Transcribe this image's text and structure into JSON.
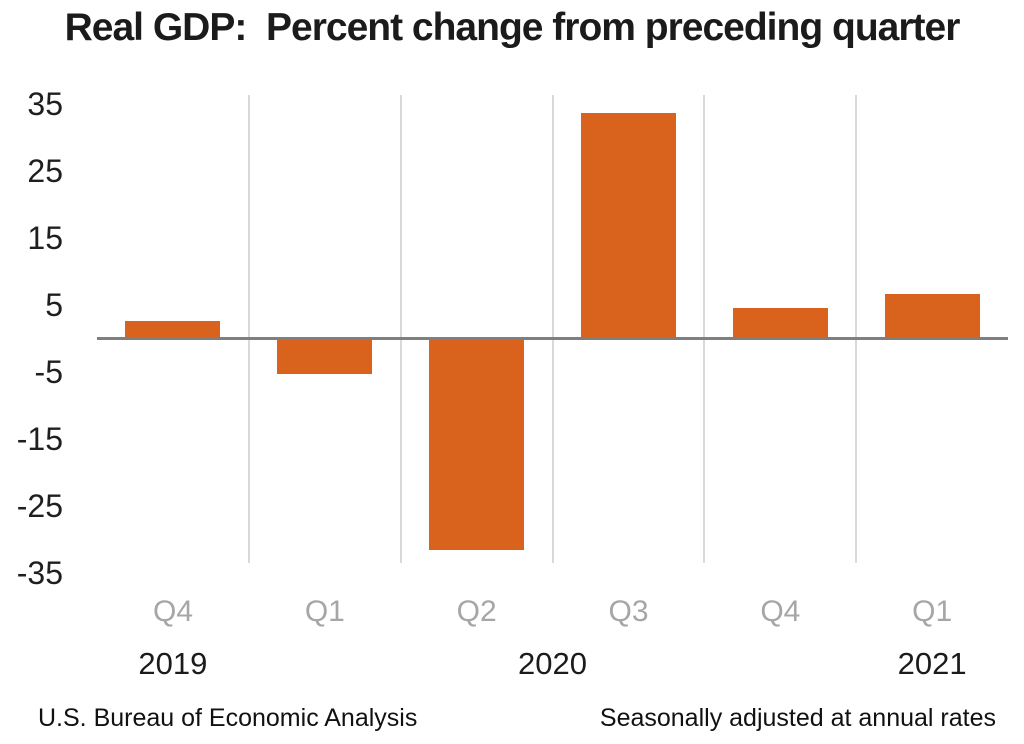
{
  "title": "Real GDP:  Percent change from preceding quarter",
  "chart_data": {
    "type": "bar",
    "title": "Real GDP:  Percent change from preceding quarter",
    "categories": [
      "Q4",
      "Q1",
      "Q2",
      "Q3",
      "Q4",
      "Q1"
    ],
    "values": [
      2.4,
      -5.0,
      -31.4,
      33.4,
      4.3,
      6.4
    ],
    "y_ticks": [
      35,
      25,
      15,
      5,
      -5,
      -15,
      -25,
      -35
    ],
    "ylim": [
      -36.5,
      36.5
    ],
    "xlabel": "",
    "ylabel": "",
    "legend": "none",
    "grid": "vertical separators between quarters",
    "year_labels": [
      {
        "label": "2019",
        "anchor": "column-0"
      },
      {
        "label": "2020",
        "anchor": "plot-center"
      },
      {
        "label": "2021",
        "anchor": "column-5"
      }
    ],
    "footer_left": "U.S. Bureau of Economic Analysis",
    "footer_right": "Seasonally adjusted at annual rates"
  },
  "colors": {
    "bar": "#D9621D",
    "zero_line": "#7F7F7F",
    "gridline": "#D9D9D9",
    "quarter_label": "#A6A6A6",
    "text": "#1B1B1B"
  }
}
